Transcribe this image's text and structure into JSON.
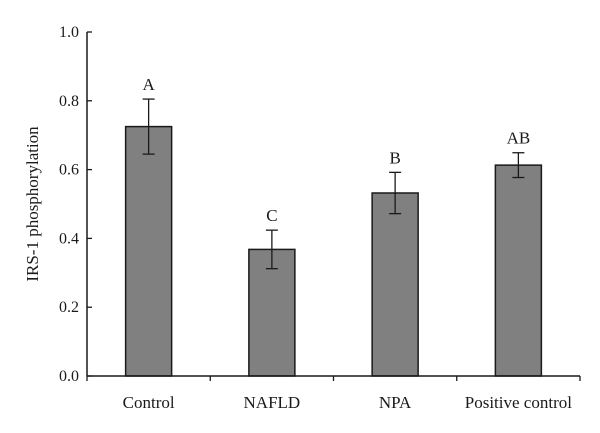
{
  "chart_data": {
    "type": "bar",
    "categories": [
      "Control",
      "NAFLD",
      "NPA",
      "Positive control"
    ],
    "values": [
      0.725,
      0.368,
      0.532,
      0.613
    ],
    "errors": [
      0.08,
      0.056,
      0.06,
      0.036
    ],
    "significance_labels": [
      "A",
      "C",
      "B",
      "AB"
    ],
    "ylabel": "IRS-1 phosphorylation",
    "xlabel": "",
    "title": "",
    "ylim": [
      0.0,
      1.0
    ],
    "yticks": [
      "0.0",
      "0.2",
      "0.4",
      "0.6",
      "0.8",
      "1.0"
    ],
    "grid": false,
    "legend": "none",
    "colors": {
      "bar_fill": "#808080",
      "bar_stroke": "#1a1a1a",
      "axis": "#1a1a1a"
    }
  }
}
